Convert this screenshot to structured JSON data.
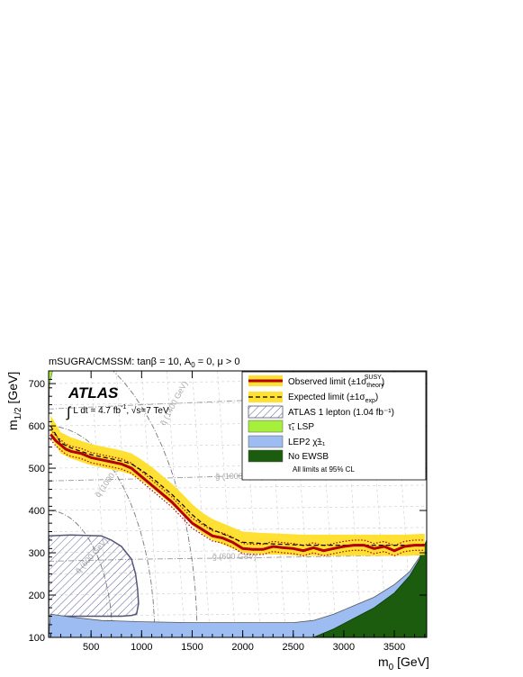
{
  "chart_data": {
    "type": "line",
    "title": "mSUGRA/CMSSM: tanβ = 10, A",
    "title_sub": "0",
    "title_tail": " = 0, μ > 0",
    "xlabel": "m",
    "xlabel_sub": "0",
    "xlabel_unit": " [GeV]",
    "ylabel": "m",
    "ylabel_sub": "1/2",
    "ylabel_unit": " [GeV]",
    "xlim": [
      80,
      3820
    ],
    "ylim": [
      100,
      730
    ],
    "xticks": [
      "500",
      "1000",
      "1500",
      "2000",
      "2500",
      "3000",
      "3500"
    ],
    "yticks": [
      "100",
      "200",
      "300",
      "400",
      "500",
      "600",
      "700"
    ],
    "experiment": "ATLAS",
    "lumi_pre": "L dt = 4.7 fb",
    "lumi_exp": "-1",
    "lumi_post": ", √s=7 TeV",
    "legend_position": "top-right",
    "legend": {
      "observed": {
        "text": "Observed limit (±1σ",
        "sup": "SUSY",
        "sub": "theory",
        "close": ")"
      },
      "expected": {
        "text": "Expected limit (±1σ",
        "sub": "exp",
        "close": ")"
      },
      "atlas1l": "ATLAS 1 lepton (1.04 fb⁻¹)",
      "stau": "τ̃₁ LSP",
      "lep2": "LEP2 χ̃±₁",
      "noewsb": "No EWSB",
      "note": "All limits at 95% CL"
    },
    "contour_labels": {
      "g1400": "g̃ (1400 GeV)",
      "g1000": "g̃ (1000 GeV)",
      "g600": "g̃ (600 GeV)",
      "q1400": "q̃ (1400 GeV)",
      "q1000": "q̃ (1000 GeV)",
      "q600": "q̃ (600 GeV)"
    },
    "series": [
      {
        "name": "Observed limit",
        "x": [
          100,
          150,
          200,
          250,
          300,
          400,
          500,
          600,
          700,
          800,
          900,
          1000,
          1100,
          1200,
          1300,
          1400,
          1500,
          1600,
          1700,
          1800,
          1900,
          2000,
          2100,
          2200,
          2300,
          2400,
          2500,
          2600,
          2700,
          2800,
          2900,
          3000,
          3100,
          3200,
          3300,
          3400,
          3500,
          3600,
          3700,
          3800
        ],
        "y": [
          580,
          565,
          555,
          545,
          540,
          535,
          525,
          520,
          515,
          510,
          500,
          480,
          460,
          440,
          420,
          395,
          370,
          355,
          340,
          335,
          325,
          310,
          308,
          308,
          315,
          312,
          310,
          305,
          312,
          305,
          310,
          315,
          318,
          318,
          310,
          315,
          305,
          315,
          318,
          318
        ]
      },
      {
        "name": "Expected limit",
        "x": [
          100,
          200,
          300,
          400,
          500,
          600,
          700,
          800,
          900,
          1000,
          1100,
          1200,
          1300,
          1400,
          1500,
          1600,
          1700,
          1800,
          1900,
          2000,
          2200,
          2400,
          2600,
          2800,
          3000,
          3200,
          3400,
          3600,
          3800
        ],
        "y": [
          600,
          560,
          548,
          540,
          532,
          527,
          522,
          517,
          510,
          495,
          478,
          458,
          438,
          415,
          390,
          370,
          355,
          345,
          335,
          325,
          322,
          320,
          318,
          318,
          318,
          318,
          318,
          318,
          320
        ]
      },
      {
        "name": "ATLAS 1 lepton (1.04 fb-1)",
        "x": [
          80,
          300,
          600,
          700,
          800,
          900,
          940,
          960,
          970,
          950,
          900,
          800,
          600,
          300,
          80
        ],
        "y": [
          340,
          342,
          340,
          330,
          315,
          285,
          250,
          215,
          180,
          155,
          152,
          150,
          150,
          150,
          150
        ]
      },
      {
        "name": "LEP2 chargino",
        "x": [
          80,
          100,
          300,
          600,
          1000,
          1500,
          2000,
          2500,
          2700,
          2900,
          3100,
          3300,
          3500,
          3650,
          3750,
          3820
        ],
        "y": [
          100,
          155,
          148,
          140,
          137,
          135,
          135,
          135,
          140,
          155,
          175,
          195,
          225,
          255,
          290,
          330
        ]
      },
      {
        "name": "No EWSB",
        "x": [
          2700,
          2900,
          3100,
          3300,
          3500,
          3650,
          3750,
          3820
        ],
        "y": [
          100,
          120,
          145,
          170,
          205,
          245,
          285,
          330
        ]
      },
      {
        "name": "stau1 LSP",
        "x": [
          80,
          90,
          120,
          80
        ],
        "y": [
          600,
          700,
          730,
          730
        ]
      }
    ]
  }
}
